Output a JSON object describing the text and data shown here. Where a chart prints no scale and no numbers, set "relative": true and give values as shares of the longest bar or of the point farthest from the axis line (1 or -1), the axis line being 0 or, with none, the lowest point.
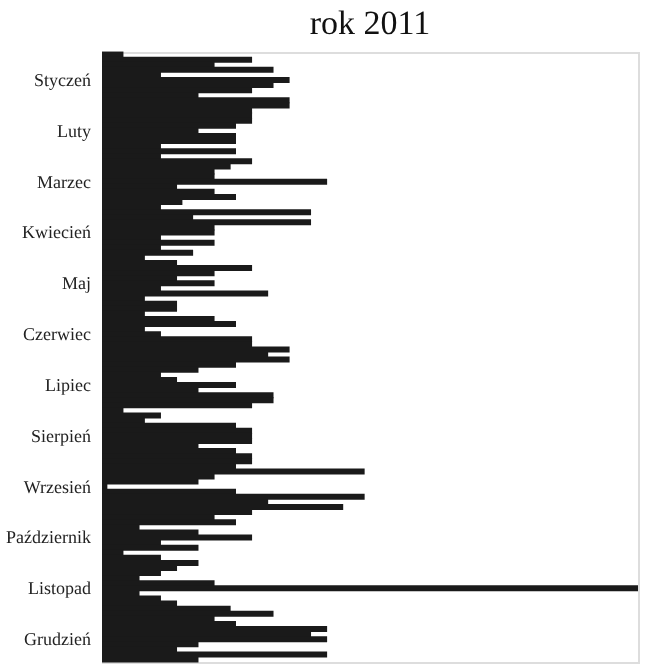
{
  "chart_data": {
    "type": "bar",
    "orientation": "horizontal",
    "relative": true,
    "title": "rok 2011",
    "categories": [
      null,
      null,
      null,
      null,
      null,
      "Styczeń",
      null,
      null,
      null,
      null,
      null,
      null,
      null,
      null,
      null,
      "Luty",
      null,
      null,
      null,
      null,
      null,
      null,
      null,
      null,
      null,
      "Marzec",
      null,
      null,
      null,
      null,
      null,
      null,
      null,
      null,
      null,
      "Kwiecień",
      null,
      null,
      null,
      null,
      null,
      null,
      null,
      null,
      null,
      "Maj",
      null,
      null,
      null,
      null,
      null,
      null,
      null,
      null,
      null,
      "Czerwiec",
      null,
      null,
      null,
      null,
      null,
      null,
      null,
      null,
      null,
      "Lipiec",
      null,
      null,
      null,
      null,
      null,
      null,
      null,
      null,
      null,
      "Sierpień",
      null,
      null,
      null,
      null,
      null,
      null,
      null,
      null,
      null,
      "Wrzesień",
      null,
      null,
      null,
      null,
      null,
      null,
      null,
      null,
      null,
      "Październik",
      null,
      null,
      null,
      null,
      null,
      null,
      null,
      null,
      null,
      "Listopad",
      null,
      null,
      null,
      null,
      null,
      null,
      null,
      null,
      null,
      "Grudzień",
      null,
      null,
      null,
      null
    ],
    "color": "#1a1a1a",
    "values": [
      0.04,
      0.28,
      0.21,
      0.32,
      0.11,
      0.35,
      0.32,
      0.28,
      0.18,
      0.35,
      0.35,
      0.28,
      0.28,
      0.28,
      0.25,
      0.18,
      0.25,
      0.25,
      0.11,
      0.25,
      0.11,
      0.28,
      0.24,
      0.21,
      0.21,
      0.42,
      0.14,
      0.21,
      0.25,
      0.15,
      0.11,
      0.39,
      0.17,
      0.39,
      0.21,
      0.21,
      0.11,
      0.21,
      0.11,
      0.17,
      0.08,
      0.14,
      0.28,
      0.21,
      0.14,
      0.21,
      0.11,
      0.31,
      0.08,
      0.14,
      0.14,
      0.08,
      0.21,
      0.25,
      0.08,
      0.11,
      0.28,
      0.28,
      0.35,
      0.31,
      0.35,
      0.25,
      0.18,
      0.11,
      0.14,
      0.25,
      0.18,
      0.32,
      0.32,
      0.28,
      0.04,
      0.11,
      0.08,
      0.25,
      0.28,
      0.28,
      0.28,
      0.18,
      0.25,
      0.28,
      0.28,
      0.25,
      0.49,
      0.21,
      0.18,
      0.01,
      0.25,
      0.49,
      0.31,
      0.45,
      0.28,
      0.21,
      0.25,
      0.07,
      0.18,
      0.28,
      0.11,
      0.18,
      0.04,
      0.11,
      0.18,
      0.14,
      0.11,
      0.07,
      0.21,
      1,
      0.07,
      0.11,
      0.14,
      0.24,
      0.32,
      0.21,
      0.25,
      0.42,
      0.39,
      0.42,
      0.18,
      0.14,
      0.42,
      0.18
    ]
  }
}
